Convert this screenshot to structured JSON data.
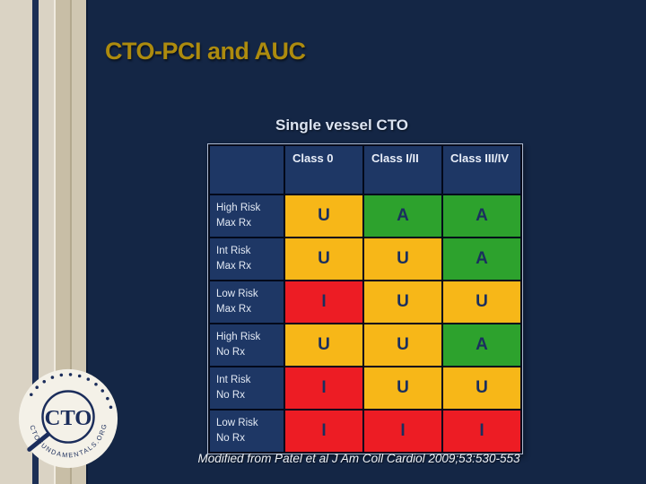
{
  "slide": {
    "title": "CTO-PCI and AUC",
    "subtitle": "Single vessel CTO",
    "citation": "Modified from Patel et al J Am Coll Cardiol 2009;53:530-553"
  },
  "logo": {
    "text": "CTO",
    "ring_text": "CTOFUNDAMENTALS.ORG"
  },
  "colors": {
    "slide_bg": "#142645",
    "table_navy": "#1e3765",
    "title_gold": "#ad8b0e",
    "letter_navy": "#1a2f5e",
    "rating_U": "#f7b718",
    "rating_A": "#2da22d",
    "rating_I": "#ed1c24"
  },
  "chart_data": {
    "type": "table",
    "title": "Single vessel CTO",
    "columns": [
      "",
      "Class 0",
      "Class I/II",
      "Class III/IV"
    ],
    "rows": [
      {
        "label_line1": "High Risk",
        "label_line2": "Max Rx",
        "values": [
          "U",
          "A",
          "A"
        ]
      },
      {
        "label_line1": "Int Risk",
        "label_line2": "Max Rx",
        "values": [
          "U",
          "U",
          "A"
        ]
      },
      {
        "label_line1": "Low Risk",
        "label_line2": "Max Rx",
        "values": [
          "I",
          "U",
          "U"
        ]
      },
      {
        "label_line1": "High Risk",
        "label_line2": "No Rx",
        "values": [
          "U",
          "U",
          "A"
        ]
      },
      {
        "label_line1": "Int Risk",
        "label_line2": "No Rx",
        "values": [
          "I",
          "U",
          "U"
        ]
      },
      {
        "label_line1": "Low Risk",
        "label_line2": "No Rx",
        "values": [
          "I",
          "I",
          "I"
        ]
      }
    ],
    "rating_colors": {
      "U": "#f7b718",
      "A": "#2da22d",
      "I": "#ed1c24"
    },
    "legend_note": "U=yellow, A=green, I=red"
  }
}
